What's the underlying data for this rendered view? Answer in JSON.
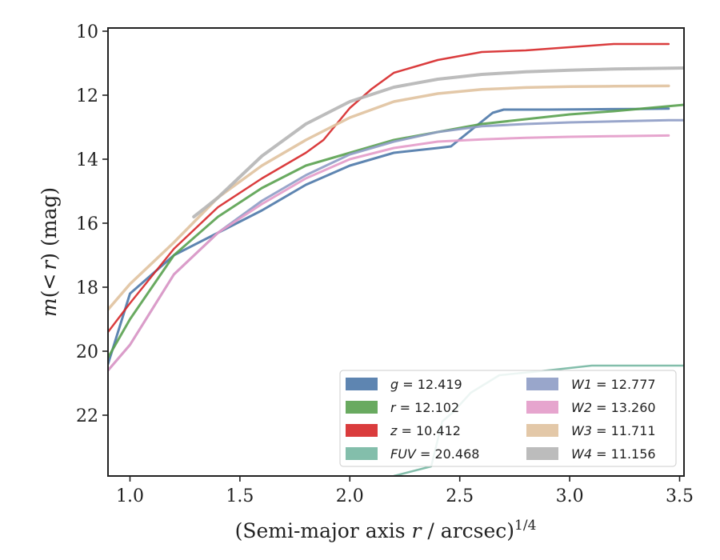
{
  "chart_data": {
    "type": "line",
    "xlabel": "(Semi-major axis r / arcsec)^{1/4}",
    "xlabel_parts": {
      "pre": "(Semi-major axis ",
      "var": "r",
      "post": " / arcsec)",
      "sup": "1/4"
    },
    "ylabel": "m(< r) (mag)",
    "ylabel_parts": {
      "m": "m",
      "open": "(",
      "lt": "<",
      "r": "r",
      "close": ")",
      "unit": " (mag)"
    },
    "xlim": [
      0.9,
      3.52
    ],
    "ylim": [
      23.9,
      9.9
    ],
    "y_inverted": true,
    "x_ticks": [
      "1.0",
      "1.5",
      "2.0",
      "2.5",
      "3.0",
      "3.5"
    ],
    "y_ticks": [
      "10",
      "12",
      "14",
      "16",
      "18",
      "20",
      "22"
    ],
    "legend_position": "lower-right",
    "series": [
      {
        "name": "g = 12.419",
        "label_var": "g",
        "label_val": "= 12.419",
        "color": "#4C78A8",
        "x": [
          0.9,
          1.0,
          1.2,
          1.4,
          1.6,
          1.8,
          2.0,
          2.2,
          2.4,
          2.46,
          2.55,
          2.65,
          2.7,
          2.9,
          3.1,
          3.3,
          3.45
        ],
        "y": [
          20.4,
          18.2,
          17.0,
          16.3,
          15.6,
          14.8,
          14.2,
          13.8,
          13.65,
          13.6,
          13.1,
          12.55,
          12.45,
          12.45,
          12.44,
          12.43,
          12.42
        ],
        "width": 3
      },
      {
        "name": "r = 12.102",
        "label_var": "r",
        "label_val": "= 12.102",
        "color": "#59A14F",
        "x": [
          0.9,
          1.0,
          1.2,
          1.4,
          1.6,
          1.8,
          2.0,
          2.2,
          2.4,
          2.6,
          2.8,
          3.0,
          3.2,
          3.52
        ],
        "y": [
          20.2,
          19.0,
          17.0,
          15.8,
          14.9,
          14.2,
          13.8,
          13.4,
          13.15,
          12.9,
          12.75,
          12.6,
          12.5,
          12.3
        ],
        "width": 3
      },
      {
        "name": "z = 10.412",
        "label_var": "z",
        "label_val": "= 10.412",
        "color": "#D62728",
        "x": [
          0.9,
          1.0,
          1.2,
          1.4,
          1.6,
          1.8,
          1.88,
          2.0,
          2.1,
          2.2,
          2.4,
          2.6,
          2.8,
          2.9,
          3.2,
          3.45
        ],
        "y": [
          19.4,
          18.5,
          16.8,
          15.5,
          14.6,
          13.8,
          13.4,
          12.4,
          11.8,
          11.3,
          10.9,
          10.65,
          10.6,
          10.55,
          10.4,
          10.4
        ],
        "width": 2.5
      },
      {
        "name": "FUV = 20.468",
        "label_var": "FUV",
        "label_val": "= 20.468",
        "color": "#76B7A2",
        "x": [
          2.2,
          2.37,
          2.42,
          2.47,
          2.55,
          2.68,
          2.9,
          3.1,
          3.25,
          3.35,
          3.45,
          3.52
        ],
        "y": [
          23.9,
          23.6,
          22.2,
          21.9,
          21.3,
          20.75,
          20.6,
          20.45,
          20.45,
          20.45,
          20.45,
          20.45
        ],
        "width": 2.5
      },
      {
        "name": "W1 = 12.777",
        "label_var": "W1",
        "label_val": "= 12.777",
        "color": "#8E9CC5",
        "x": [
          0.9,
          1.0,
          1.2,
          1.4,
          1.6,
          1.8,
          2.0,
          2.2,
          2.4,
          2.6,
          2.8,
          3.0,
          3.2,
          3.45,
          3.52
        ],
        "y": [
          20.6,
          19.8,
          17.6,
          16.3,
          15.3,
          14.5,
          13.85,
          13.45,
          13.15,
          12.97,
          12.9,
          12.85,
          12.82,
          12.78,
          12.78
        ],
        "width": 3
      },
      {
        "name": "W2 = 13.260",
        "label_var": "W2",
        "label_val": "= 13.260",
        "color": "#E39BC9",
        "x": [
          0.9,
          1.0,
          1.2,
          1.4,
          1.6,
          1.8,
          2.0,
          2.2,
          2.4,
          2.6,
          2.8,
          3.0,
          3.2,
          3.45
        ],
        "y": [
          20.6,
          19.8,
          17.6,
          16.3,
          15.4,
          14.6,
          14.0,
          13.65,
          13.45,
          13.38,
          13.33,
          13.3,
          13.28,
          13.26
        ],
        "width": 3
      },
      {
        "name": "W3 = 11.711",
        "label_var": "W3",
        "label_val": "= 11.711",
        "color": "#E0C29E",
        "x": [
          0.9,
          1.0,
          1.2,
          1.4,
          1.6,
          1.8,
          2.0,
          2.2,
          2.4,
          2.6,
          2.8,
          3.0,
          3.2,
          3.45
        ],
        "y": [
          18.7,
          17.9,
          16.6,
          15.2,
          14.2,
          13.4,
          12.7,
          12.2,
          11.95,
          11.82,
          11.76,
          11.73,
          11.72,
          11.71
        ],
        "width": 3.5
      },
      {
        "name": "W4 = 11.156",
        "label_var": "W4",
        "label_val": "= 11.156",
        "color": "#B5B5B5",
        "x": [
          1.29,
          1.4,
          1.6,
          1.8,
          2.0,
          2.2,
          2.4,
          2.6,
          2.8,
          3.0,
          3.2,
          3.52
        ],
        "y": [
          15.8,
          15.2,
          13.9,
          12.9,
          12.2,
          11.75,
          11.5,
          11.35,
          11.27,
          11.22,
          11.18,
          11.15
        ],
        "width": 4
      }
    ]
  }
}
